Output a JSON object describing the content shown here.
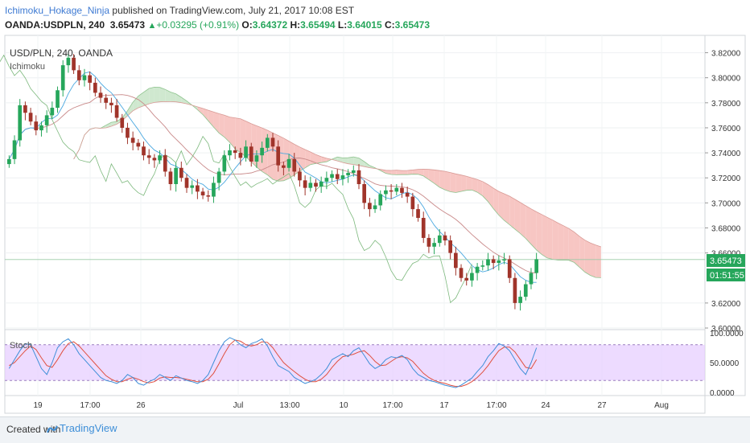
{
  "header": {
    "author": "Ichimoku_Hokage_Ninja",
    "published_text": "published on TradingView.com, July 21, 2017 10:08 EST",
    "symbol": "OANDA:USDPLN, 240",
    "last": "3.65473",
    "change": "+0.03295 (+0.91%)",
    "open_label": "O:",
    "open": "3.64372",
    "high_label": "H:",
    "high": "3.65494",
    "low_label": "L:",
    "low": "3.64015",
    "close_label": "C:",
    "close": "3.65473"
  },
  "legend": {
    "pair": "USD/PLN, 240, OANDA",
    "indicator": "Ichimoku",
    "stoch": "Stoch"
  },
  "price_tag": {
    "price": "3.65473",
    "countdown": "01:51:55"
  },
  "footer": {
    "created_with": "Created with",
    "brand": "TradingView"
  },
  "colors": {
    "up": "#26a65b",
    "down": "#a0342a",
    "kumo_bull": "#cfe8cf",
    "kumo_bear": "#f7c6c3",
    "tenkan": "#4aa8e0",
    "kijun": "#c98a8a",
    "chikou": "#7cb87c",
    "stoch_k": "#3f8fd8",
    "stoch_d": "#e0503f",
    "stoch_band": "#e5ccff"
  },
  "chart_data": {
    "type": "candlestick",
    "y_axis_ticks": [
      "3.82000",
      "3.80000",
      "3.78000",
      "3.76000",
      "3.74000",
      "3.72000",
      "3.70000",
      "3.68000",
      "3.66000",
      "3.62000",
      "3.60000"
    ],
    "ylim": [
      3.6,
      3.83
    ],
    "x_axis_ticks": [
      "19",
      "17:00",
      "26",
      "Jul",
      "13:00",
      "10",
      "17:00",
      "17",
      "17:00",
      "24",
      "27",
      "Aug"
    ],
    "stoch_ticks": [
      "100.0000",
      "50.0000",
      "0.0000"
    ],
    "stoch_levels": [
      80,
      20
    ],
    "closes": [
      3.735,
      3.75,
      3.778,
      3.772,
      3.765,
      3.758,
      3.762,
      3.77,
      3.776,
      3.79,
      3.81,
      3.816,
      3.806,
      3.798,
      3.802,
      3.796,
      3.788,
      3.784,
      3.78,
      3.778,
      3.768,
      3.76,
      3.752,
      3.748,
      3.745,
      3.738,
      3.736,
      3.734,
      3.738,
      3.725,
      3.715,
      3.728,
      3.72,
      3.712,
      3.714,
      3.709,
      3.706,
      3.705,
      3.716,
      3.725,
      3.738,
      3.742,
      3.74,
      3.736,
      3.745,
      3.733,
      3.738,
      3.744,
      3.752,
      3.745,
      3.73,
      3.728,
      3.735,
      3.725,
      3.718,
      3.712,
      3.716,
      3.713,
      3.717,
      3.72,
      3.723,
      3.719,
      3.722,
      3.724,
      3.726,
      3.715,
      3.7,
      3.695,
      3.698,
      3.707,
      3.71,
      3.709,
      3.712,
      3.708,
      3.705,
      3.695,
      3.688,
      3.672,
      3.665,
      3.668,
      3.674,
      3.67,
      3.66,
      3.648,
      3.64,
      3.638,
      3.644,
      3.649,
      3.65,
      3.655,
      3.652,
      3.654,
      3.655,
      3.64,
      3.62,
      3.625,
      3.635,
      3.644,
      3.655
    ],
    "stoch_k": [
      40,
      55,
      70,
      82,
      80,
      60,
      40,
      30,
      50,
      75,
      85,
      90,
      80,
      65,
      55,
      45,
      35,
      25,
      20,
      18,
      15,
      20,
      30,
      25,
      15,
      12,
      18,
      22,
      30,
      25,
      20,
      28,
      24,
      20,
      18,
      15,
      20,
      30,
      50,
      70,
      85,
      92,
      88,
      80,
      75,
      82,
      85,
      90,
      78,
      60,
      45,
      40,
      35,
      25,
      20,
      15,
      18,
      22,
      30,
      40,
      55,
      60,
      65,
      60,
      70,
      75,
      62,
      48,
      40,
      45,
      55,
      60,
      58,
      62,
      55,
      40,
      30,
      25,
      20,
      18,
      15,
      12,
      10,
      8,
      12,
      18,
      24,
      35,
      45,
      60,
      70,
      82,
      78,
      70,
      55,
      40,
      30,
      50,
      75
    ],
    "stoch_d": [
      45,
      50,
      60,
      70,
      78,
      72,
      58,
      45,
      42,
      55,
      70,
      82,
      85,
      78,
      68,
      58,
      48,
      38,
      28,
      22,
      18,
      18,
      22,
      25,
      22,
      18,
      16,
      18,
      24,
      26,
      25,
      25,
      24,
      22,
      20,
      18,
      18,
      22,
      32,
      48,
      65,
      80,
      88,
      86,
      80,
      78,
      80,
      85,
      84,
      75,
      62,
      50,
      42,
      35,
      28,
      22,
      18,
      18,
      22,
      30,
      42,
      52,
      60,
      62,
      64,
      68,
      70,
      62,
      52,
      45,
      46,
      52,
      58,
      60,
      58,
      52,
      42,
      32,
      25,
      20,
      17,
      15,
      12,
      10,
      10,
      13,
      18,
      25,
      34,
      45,
      58,
      70,
      76,
      76,
      68,
      55,
      42,
      40,
      55
    ]
  }
}
